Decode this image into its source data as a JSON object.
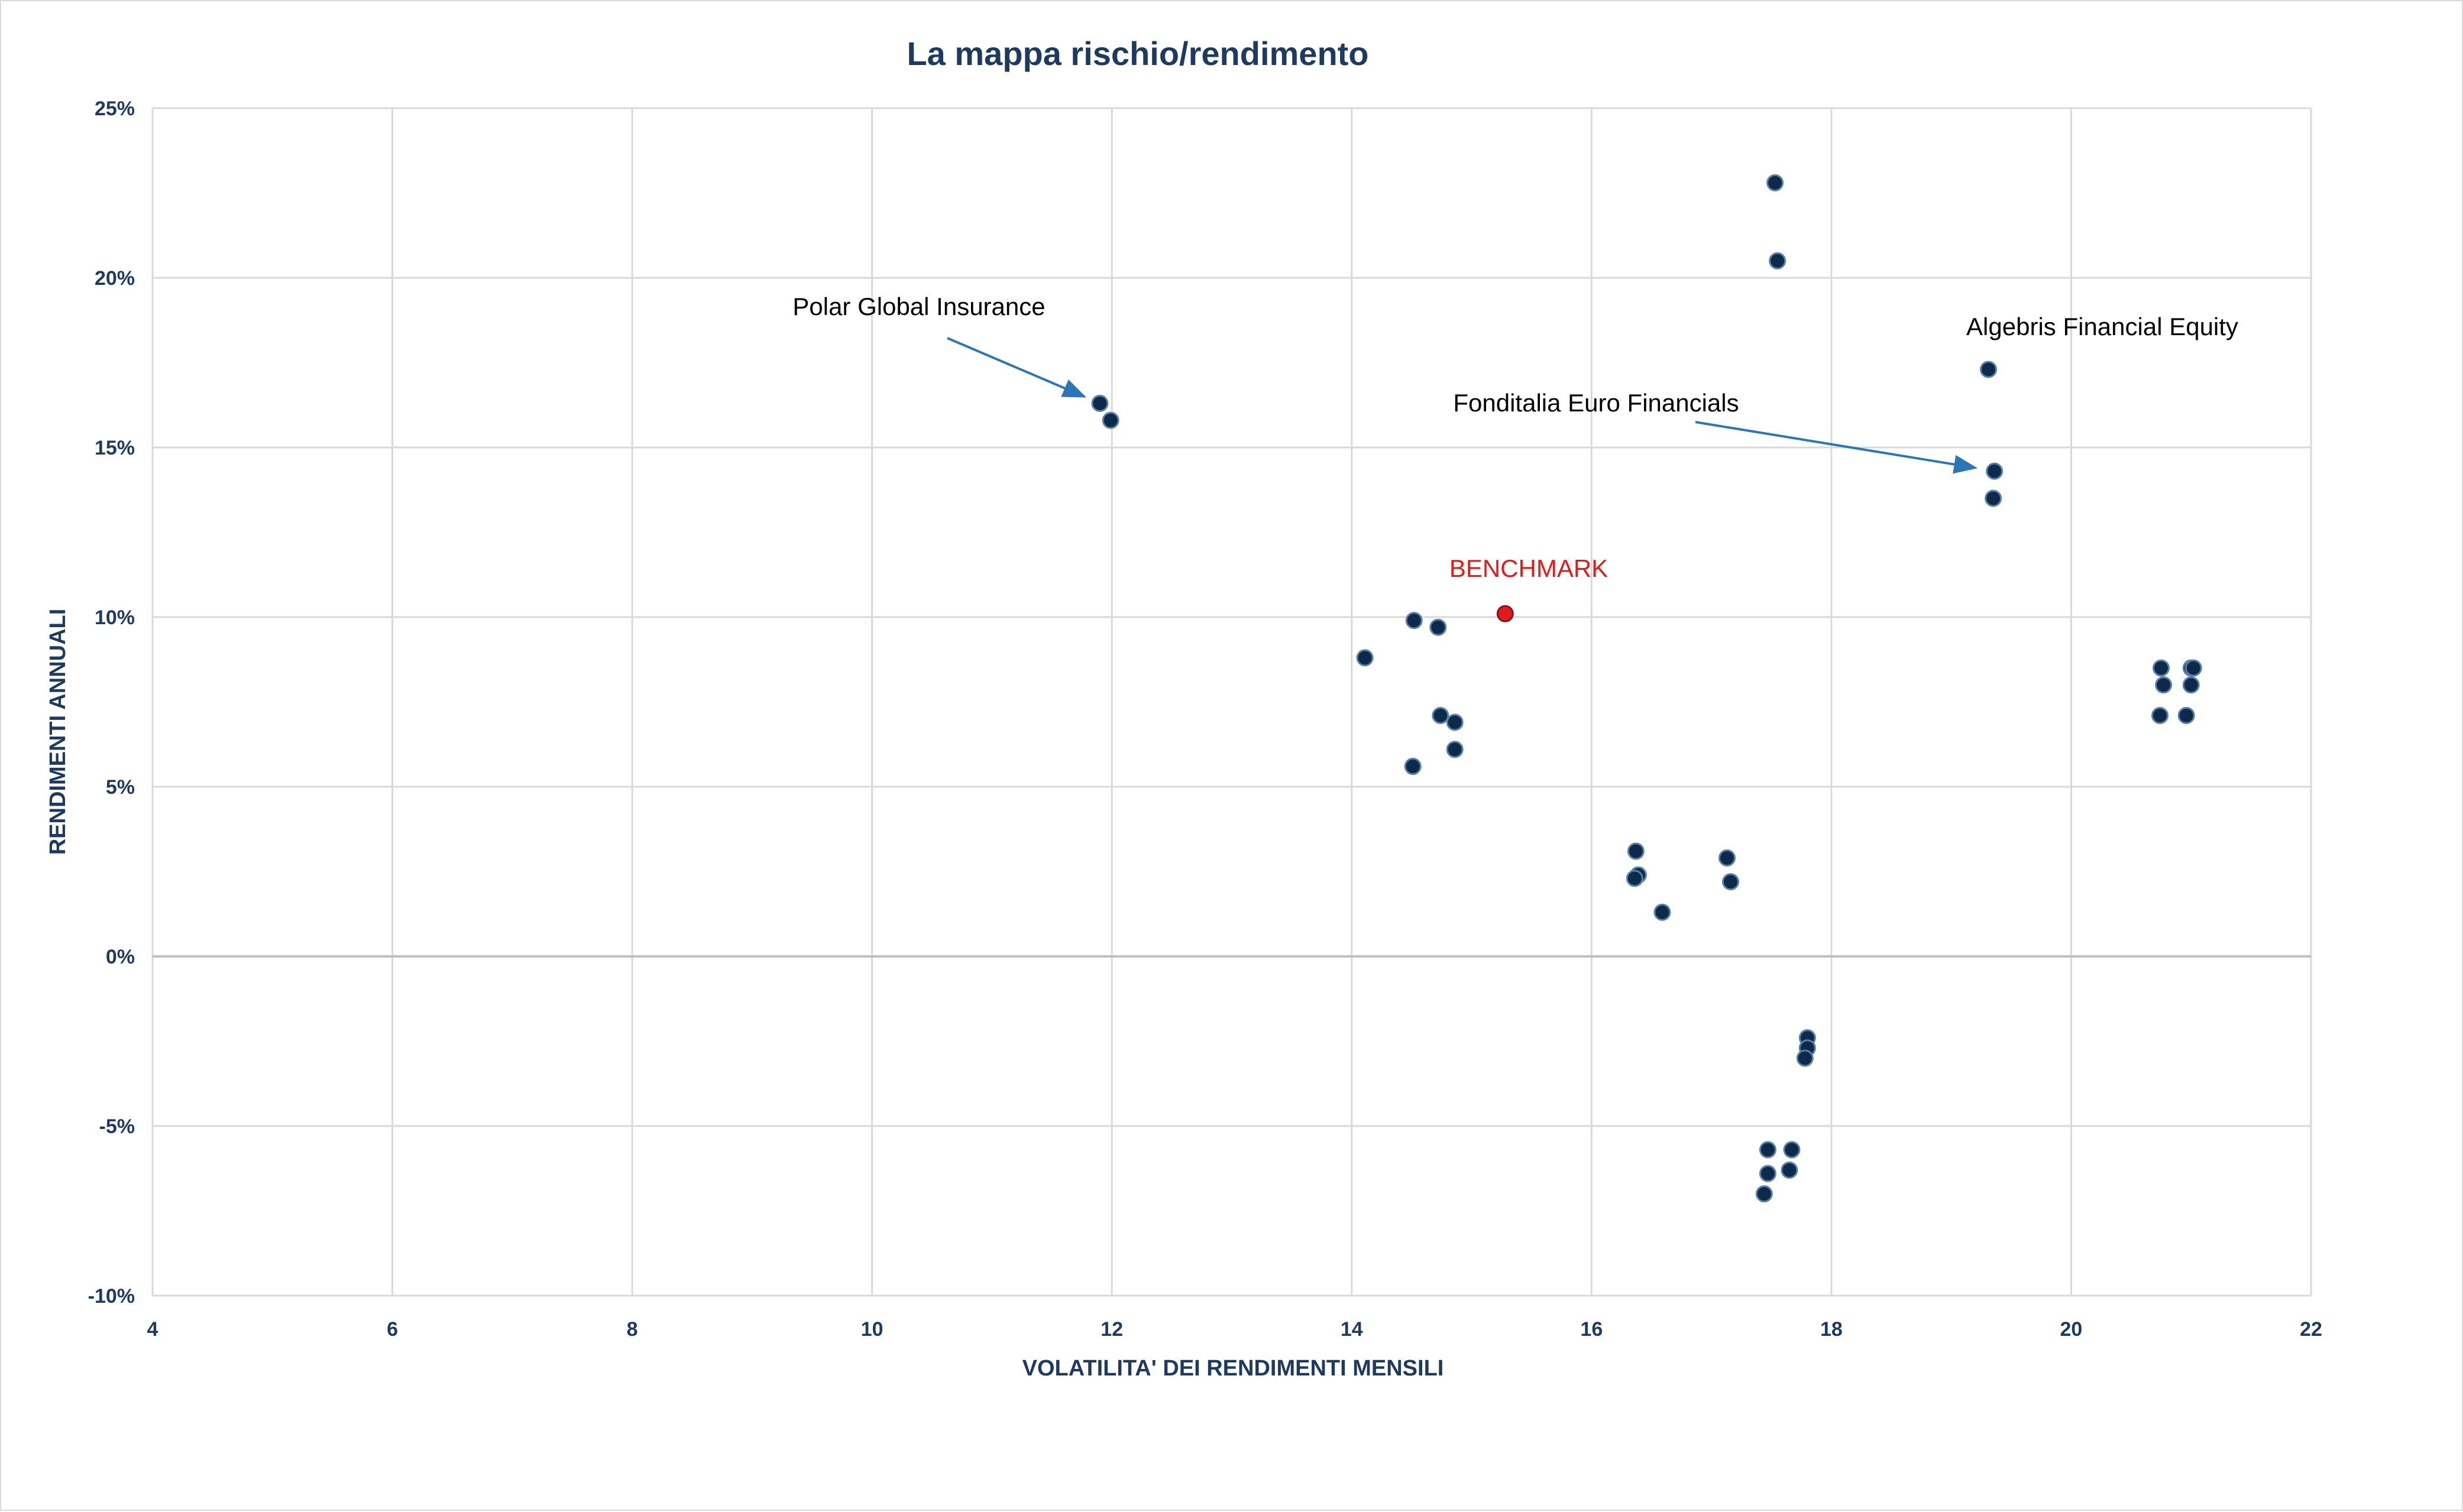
{
  "chart_data": {
    "type": "scatter",
    "title": "La mappa rischio/rendimento",
    "xlabel": "VOLATILITA' DEI RENDIMENTI MENSILI",
    "ylabel": "RENDIMENTI ANNUALI",
    "xlim": [
      4,
      22
    ],
    "ylim": [
      -10,
      25
    ],
    "x_ticks": [
      "4",
      "6",
      "8",
      "10",
      "12",
      "14",
      "16",
      "18",
      "20",
      "22"
    ],
    "y_ticks": [
      "25%",
      "20%",
      "15%",
      "10%",
      "5%",
      "0%",
      "-5%",
      "-10%"
    ],
    "grid": true,
    "colors": {
      "points": "#0d2a4a",
      "benchmark": "#e31a1c",
      "grid": "#d9d9d9",
      "arrow": "#2e75b6"
    },
    "points": [
      {
        "x": 17.53,
        "y": 22.8
      },
      {
        "x": 17.55,
        "y": 20.5
      },
      {
        "x": 11.9,
        "y": 16.3
      },
      {
        "x": 11.99,
        "y": 15.8
      },
      {
        "x": 19.31,
        "y": 17.3
      },
      {
        "x": 19.36,
        "y": 14.3
      },
      {
        "x": 19.35,
        "y": 13.5
      },
      {
        "x": 14.52,
        "y": 9.9
      },
      {
        "x": 14.72,
        "y": 9.7
      },
      {
        "x": 14.11,
        "y": 8.8
      },
      {
        "x": 14.74,
        "y": 7.1
      },
      {
        "x": 14.86,
        "y": 6.9
      },
      {
        "x": 14.86,
        "y": 6.1
      },
      {
        "x": 14.51,
        "y": 5.6
      },
      {
        "x": 20.75,
        "y": 8.5
      },
      {
        "x": 21.0,
        "y": 8.5
      },
      {
        "x": 21.02,
        "y": 8.5
      },
      {
        "x": 20.77,
        "y": 8.0
      },
      {
        "x": 21.0,
        "y": 8.0
      },
      {
        "x": 20.74,
        "y": 7.1
      },
      {
        "x": 20.96,
        "y": 7.1
      },
      {
        "x": 16.37,
        "y": 3.1
      },
      {
        "x": 16.39,
        "y": 2.4
      },
      {
        "x": 16.36,
        "y": 2.3
      },
      {
        "x": 17.13,
        "y": 2.9
      },
      {
        "x": 17.16,
        "y": 2.2
      },
      {
        "x": 16.59,
        "y": 1.3
      },
      {
        "x": 17.8,
        "y": -2.4
      },
      {
        "x": 17.8,
        "y": -2.7
      },
      {
        "x": 17.78,
        "y": -3.0
      },
      {
        "x": 17.47,
        "y": -5.7
      },
      {
        "x": 17.67,
        "y": -5.7
      },
      {
        "x": 17.47,
        "y": -6.4
      },
      {
        "x": 17.65,
        "y": -6.3
      },
      {
        "x": 17.44,
        "y": -7.0
      }
    ],
    "benchmark": {
      "label": "BENCHMARK",
      "x": 15.28,
      "y": 10.1
    },
    "annotations": [
      {
        "text": "Polar Global Insurance",
        "target_x": 11.77,
        "target_y": 16.5
      },
      {
        "text": "Fonditalia Euro Financials",
        "target_x": 19.2,
        "target_y": 14.4
      },
      {
        "text": "Algebris Financial Equity"
      }
    ]
  }
}
